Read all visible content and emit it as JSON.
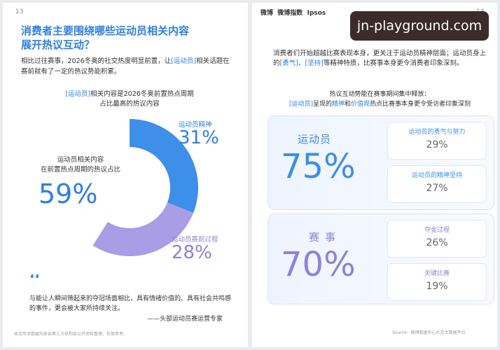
{
  "left": {
    "page_number": "13",
    "title": [
      "消费者主要围绕哪些运动员相关内容",
      "展开热议互动？"
    ],
    "intro": [
      "相比过往赛事，2026冬奥的社交热度明显前置，",
      "让",
      "[运动员]",
      "相关话题在赛前就有了一定的热议势能积累。"
    ],
    "quote": "与能让人瞬间筛起来的夺冠场面相比，具有情绪价值的、具有社会共鸣感的事件，更会被大家所持续关注。",
    "quote_author": "——头部运动员赛运营专家",
    "footer": "本文所涉数据均来自第三方机构及公开资料整理，仅供参考。"
  },
  "chart_data": {
    "type": "donut",
    "title": [
      "[运动员]",
      "相关内容是2026冬奥前置热点周期",
      "占比最高的热议内容"
    ],
    "categories": [
      "运动员精神",
      "运动员赛前过程"
    ],
    "values": [
      31,
      28
    ],
    "value_labels": [
      "31%",
      "28%"
    ],
    "colors": [
      "#3d8fe8",
      "#a99de6"
    ],
    "annotation": {
      "text": [
        "运动员相关内容",
        "在前置热点周期的热议占比"
      ],
      "value_label": "59%"
    }
  },
  "right": {
    "logos": [
      "微博",
      "微博指数",
      "Ipsos"
    ],
    "page_number": "14",
    "watermark": "jn-playground.com",
    "intro": [
      "消费者们开始超越比赛表现本身，更关注于运动员精神层面；",
      "运动员身上的",
      "[勇气]",
      "、",
      "[坚持]",
      "等精神特质，比赛事本身更令消费者印象深刻。"
    ],
    "chart_title": [
      "热议互动势能在赛事期间集中释放：",
      "[运动员]",
      "呈现的",
      "精神",
      "和",
      "价值观",
      "热点比赛事本身更令受访者印象深刻"
    ],
    "panels": [
      {
        "name": "运动员",
        "value": "75%",
        "items": [
          {
            "name": "运动员的勇气与努力",
            "value": "29%"
          },
          {
            "name": "运动员的精神坚持",
            "value": "27%"
          }
        ]
      },
      {
        "name": "赛事",
        "value": "70%",
        "items": [
          {
            "name": "夺金过程",
            "value": "26%"
          },
          {
            "name": "关键比赛",
            "value": "19%"
          }
        ]
      }
    ],
    "source": "Source：微博数据中心社交大数据平台"
  }
}
